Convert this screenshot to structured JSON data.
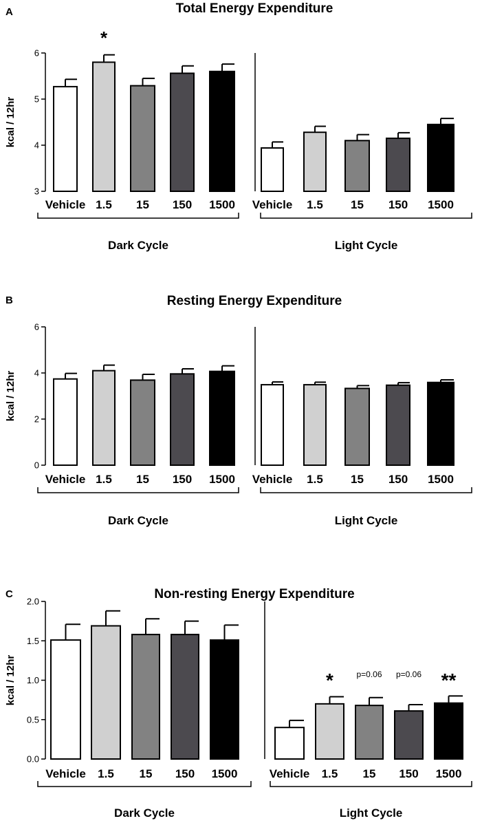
{
  "chart_data": [
    {
      "type": "bar",
      "panel": "A",
      "title": "Total Energy Expenditure",
      "ylabel": "kcal / 12hr",
      "xlabel": "",
      "ylim": [
        3,
        6
      ],
      "yticks": [
        "3",
        "4",
        "5",
        "6"
      ],
      "groups": [
        {
          "label": "Dark Cycle",
          "categories": [
            "Vehicle",
            "1.5",
            "15",
            "150",
            "1500"
          ],
          "values": [
            5.27,
            5.8,
            5.29,
            5.56,
            5.6
          ],
          "errors": [
            0.16,
            0.16,
            0.16,
            0.16,
            0.16
          ],
          "annotations": [
            "",
            "*",
            "",
            "",
            ""
          ]
        },
        {
          "label": "Light Cycle",
          "categories": [
            "Vehicle",
            "1.5",
            "15",
            "150",
            "1500"
          ],
          "values": [
            3.94,
            4.28,
            4.1,
            4.15,
            4.45
          ],
          "errors": [
            0.13,
            0.13,
            0.13,
            0.12,
            0.13
          ],
          "annotations": [
            "",
            "",
            "",
            "",
            ""
          ]
        }
      ]
    },
    {
      "type": "bar",
      "panel": "B",
      "title": "Resting Energy Expenditure",
      "ylabel": "kcal / 12hr",
      "xlabel": "",
      "ylim": [
        0,
        6
      ],
      "yticks": [
        "0",
        "2",
        "4",
        "6"
      ],
      "groups": [
        {
          "label": "Dark Cycle",
          "categories": [
            "Vehicle",
            "1.5",
            "15",
            "150",
            "1500"
          ],
          "values": [
            3.74,
            4.1,
            3.69,
            3.96,
            4.07
          ],
          "errors": [
            0.24,
            0.24,
            0.25,
            0.22,
            0.24
          ],
          "annotations": [
            "",
            "",
            "",
            "",
            ""
          ]
        },
        {
          "label": "Light Cycle",
          "categories": [
            "Vehicle",
            "1.5",
            "15",
            "150",
            "1500"
          ],
          "values": [
            3.49,
            3.49,
            3.33,
            3.47,
            3.59
          ],
          "errors": [
            0.12,
            0.11,
            0.12,
            0.11,
            0.11
          ],
          "annotations": [
            "",
            "",
            "",
            "",
            ""
          ]
        }
      ]
    },
    {
      "type": "bar",
      "panel": "C",
      "title": "Non-resting Energy Expenditure",
      "ylabel": "kcal / 12hr",
      "xlabel": "",
      "ylim": [
        0,
        2
      ],
      "yticks": [
        "0.0",
        "0.5",
        "1.0",
        "1.5",
        "2.0"
      ],
      "groups": [
        {
          "label": "Dark Cycle",
          "categories": [
            "Vehicle",
            "1.5",
            "15",
            "150",
            "1500"
          ],
          "values": [
            1.51,
            1.69,
            1.58,
            1.58,
            1.51
          ],
          "errors": [
            0.2,
            0.19,
            0.2,
            0.17,
            0.19
          ],
          "annotations": [
            "",
            "",
            "",
            "",
            ""
          ]
        },
        {
          "label": "Light Cycle",
          "categories": [
            "Vehicle",
            "1.5",
            "15",
            "150",
            "1500"
          ],
          "values": [
            0.4,
            0.7,
            0.68,
            0.61,
            0.71
          ],
          "errors": [
            0.09,
            0.09,
            0.1,
            0.08,
            0.09
          ],
          "annotations": [
            "",
            "*",
            "p=0.06",
            "p=0.06",
            "**"
          ]
        }
      ]
    }
  ],
  "colors": {
    "bars": [
      "#ffffff",
      "#d0d0d0",
      "#828282",
      "#4c4a4f",
      "#000000"
    ],
    "stroke": "#000000"
  }
}
